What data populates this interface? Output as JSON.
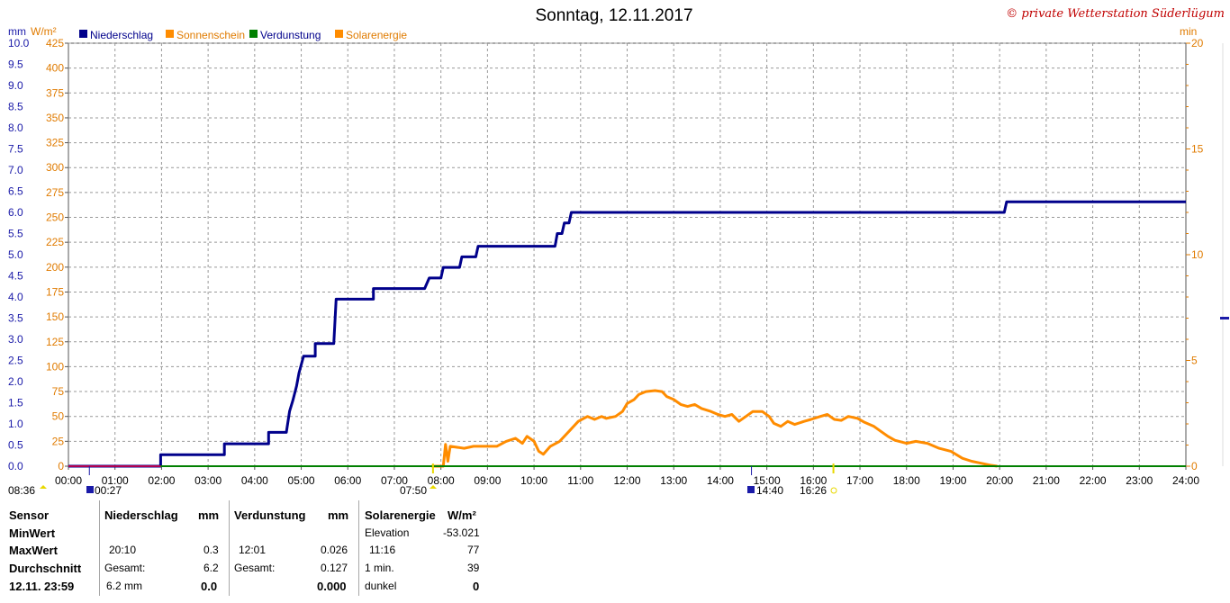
{
  "header": {
    "title": "Sonntag, 12.11.2017",
    "copyright": "© private Wetterstation Süderlügum"
  },
  "axes": {
    "left_unit_mm": "mm",
    "left_unit_w": "W/m²",
    "right_unit": "min"
  },
  "legend": [
    {
      "label": "Niederschlag",
      "color": "#00008b"
    },
    {
      "label": "Sonnenschein",
      "color": "#ff8c00"
    },
    {
      "label": "Verdunstung",
      "color": "#008000"
    },
    {
      "label": "Solarenergie",
      "color": "#ff8c00"
    }
  ],
  "markers": {
    "sunrise_label": "08:36",
    "sunrise2_label": "00:27",
    "sunup_label": "07:50",
    "sun_peak_label": "14:40",
    "sunset_label": "16:26"
  },
  "chart_data": {
    "type": "line",
    "xlim": [
      0,
      24
    ],
    "x_ticks": [
      "00:00",
      "01:00",
      "02:00",
      "03:00",
      "04:00",
      "05:00",
      "06:00",
      "07:00",
      "08:00",
      "09:00",
      "10:00",
      "11:00",
      "12:00",
      "13:00",
      "14:00",
      "15:00",
      "16:00",
      "17:00",
      "18:00",
      "19:00",
      "20:00",
      "21:00",
      "22:00",
      "23:00",
      "24:00"
    ],
    "y_mm_ticks": [
      "0.0",
      "0.5",
      "1.0",
      "1.5",
      "2.0",
      "2.5",
      "3.0",
      "3.5",
      "4.0",
      "4.5",
      "5.0",
      "5.5",
      "6.0",
      "6.5",
      "7.0",
      "7.5",
      "8.0",
      "8.5",
      "9.0",
      "9.5",
      "10.0"
    ],
    "y_w_ticks": [
      "0",
      "25",
      "50",
      "75",
      "100",
      "125",
      "150",
      "175",
      "200",
      "225",
      "250",
      "275",
      "300",
      "325",
      "350",
      "375",
      "400",
      "425"
    ],
    "y_min_ticks": [
      "0",
      "5",
      "10",
      "15",
      "20"
    ],
    "ylim_mm": [
      0,
      10
    ],
    "ylim_w": [
      0,
      425
    ],
    "ylim_min": [
      0,
      20
    ],
    "series": [
      {
        "name": "Niederschlag",
        "color": "#00008b",
        "points": [
          [
            0,
            0
          ],
          [
            1.98,
            0
          ],
          [
            1.98,
            0.27
          ],
          [
            3.35,
            0.27
          ],
          [
            3.35,
            0.53
          ],
          [
            4.3,
            0.53
          ],
          [
            4.3,
            0.8
          ],
          [
            4.68,
            0.8
          ],
          [
            4.75,
            1.3
          ],
          [
            4.82,
            1.55
          ],
          [
            4.9,
            1.9
          ],
          [
            4.95,
            2.2
          ],
          [
            5.05,
            2.6
          ],
          [
            5.3,
            2.6
          ],
          [
            5.3,
            2.9
          ],
          [
            5.7,
            2.9
          ],
          [
            5.75,
            3.95
          ],
          [
            6.55,
            3.95
          ],
          [
            6.55,
            4.2
          ],
          [
            7.65,
            4.2
          ],
          [
            7.75,
            4.45
          ],
          [
            8.0,
            4.45
          ],
          [
            8.05,
            4.7
          ],
          [
            8.4,
            4.7
          ],
          [
            8.45,
            4.95
          ],
          [
            8.75,
            4.95
          ],
          [
            8.8,
            5.2
          ],
          [
            10.45,
            5.2
          ],
          [
            10.5,
            5.5
          ],
          [
            10.6,
            5.5
          ],
          [
            10.65,
            5.75
          ],
          [
            10.75,
            5.75
          ],
          [
            10.8,
            6.0
          ],
          [
            20.1,
            6.0
          ],
          [
            20.15,
            6.25
          ],
          [
            24,
            6.25
          ]
        ]
      },
      {
        "name": "Solarenergie",
        "color": "#ff8c00",
        "points": [
          [
            7.8,
            0
          ],
          [
            8.05,
            0
          ],
          [
            8.1,
            22
          ],
          [
            8.15,
            5
          ],
          [
            8.2,
            20
          ],
          [
            8.5,
            18
          ],
          [
            8.7,
            20
          ],
          [
            9.2,
            20
          ],
          [
            9.4,
            25
          ],
          [
            9.6,
            28
          ],
          [
            9.75,
            23
          ],
          [
            9.85,
            30
          ],
          [
            10.0,
            25
          ],
          [
            10.1,
            15
          ],
          [
            10.2,
            12
          ],
          [
            10.35,
            20
          ],
          [
            10.55,
            25
          ],
          [
            10.75,
            35
          ],
          [
            10.95,
            45
          ],
          [
            11.15,
            50
          ],
          [
            11.3,
            47
          ],
          [
            11.45,
            50
          ],
          [
            11.55,
            48
          ],
          [
            11.75,
            50
          ],
          [
            11.9,
            55
          ],
          [
            12.0,
            63
          ],
          [
            12.15,
            67
          ],
          [
            12.25,
            72
          ],
          [
            12.4,
            75
          ],
          [
            12.6,
            76
          ],
          [
            12.75,
            75
          ],
          [
            12.85,
            70
          ],
          [
            13.0,
            67
          ],
          [
            13.15,
            62
          ],
          [
            13.3,
            60
          ],
          [
            13.45,
            62
          ],
          [
            13.6,
            58
          ],
          [
            13.8,
            55
          ],
          [
            13.95,
            52
          ],
          [
            14.1,
            50
          ],
          [
            14.25,
            52
          ],
          [
            14.4,
            45
          ],
          [
            14.55,
            50
          ],
          [
            14.7,
            55
          ],
          [
            14.9,
            55
          ],
          [
            15.05,
            50
          ],
          [
            15.15,
            43
          ],
          [
            15.3,
            40
          ],
          [
            15.45,
            45
          ],
          [
            15.6,
            42
          ],
          [
            15.8,
            45
          ],
          [
            15.95,
            47
          ],
          [
            16.15,
            50
          ],
          [
            16.3,
            52
          ],
          [
            16.45,
            47
          ],
          [
            16.6,
            46
          ],
          [
            16.75,
            50
          ],
          [
            16.95,
            48
          ],
          [
            17.1,
            44
          ],
          [
            17.3,
            40
          ],
          [
            17.45,
            35
          ],
          [
            17.6,
            30
          ],
          [
            17.75,
            26
          ],
          [
            18.0,
            23
          ],
          [
            18.2,
            25
          ],
          [
            18.45,
            23
          ],
          [
            18.7,
            18
          ],
          [
            18.95,
            15
          ],
          [
            19.2,
            8
          ],
          [
            19.4,
            5
          ],
          [
            19.6,
            3
          ],
          [
            19.8,
            1
          ],
          [
            19.95,
            0
          ]
        ]
      },
      {
        "name": "Verdunstung",
        "color": "#008000",
        "points": [
          [
            0,
            0
          ],
          [
            24,
            0
          ]
        ]
      }
    ]
  },
  "table": {
    "col1": {
      "header": "Sensor",
      "r1": "MinWert",
      "r2": "MaxWert",
      "r3": "Durchschnitt",
      "r4": "12.11. 23:59"
    },
    "col2": {
      "header": "Niederschlag",
      "unit": "mm",
      "r2_time": "20:10",
      "r2_val": "0.3",
      "r3_label": "Gesamt:",
      "r3_val": "6.2",
      "r4_label": "6.2 mm",
      "r4_val": "0.0"
    },
    "col3": {
      "header": "Verdunstung",
      "unit": "mm",
      "r2_time": "12:01",
      "r2_val": "0.026",
      "r3_label": "Gesamt:",
      "r3_val": "0.127",
      "r4_val": "0.000"
    },
    "col4": {
      "header": "Solarenergie",
      "unit": "W/m²",
      "r1_label": "Elevation",
      "r1_val": "-53.021",
      "r2_time": "11:16",
      "r2_val": "77",
      "r3_label": "1 min.",
      "r3_val": "39",
      "r4_label": "dunkel",
      "r4_val": "0"
    }
  }
}
